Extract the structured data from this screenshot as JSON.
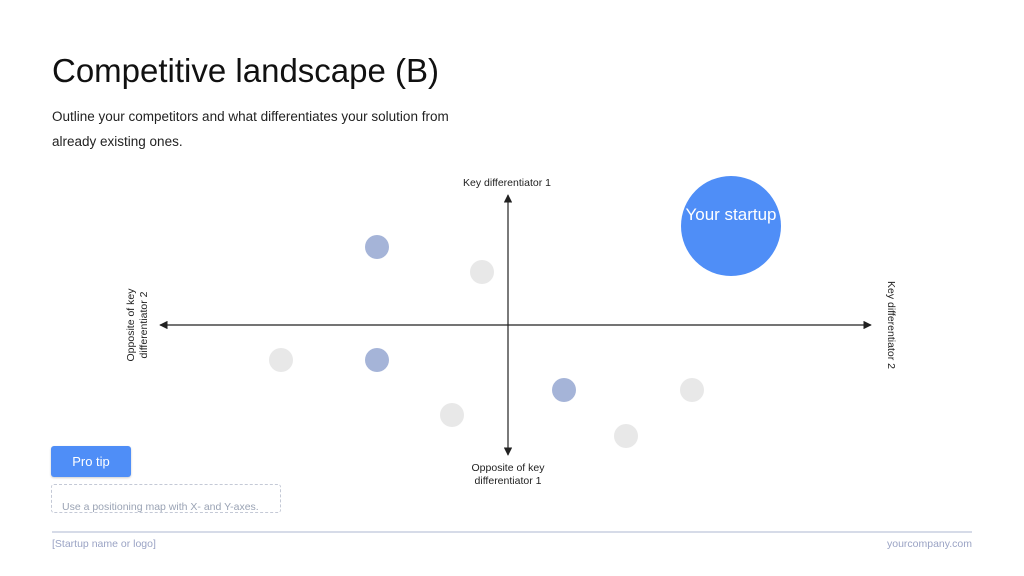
{
  "title": "Competitive landscape (B)",
  "subtitle": "Outline your competitors and what differentiates your solution from already existing ones.",
  "map": {
    "y_axis_top_label": "Key differentiator 1",
    "y_axis_bottom_label": "Opposite of key differentiator 1",
    "x_axis_left_label": "Opposite of key differentiator 2",
    "x_axis_right_label": "Key differentiator 2",
    "startup_label": "Your startup",
    "colors": {
      "startup": "#4f8ef7",
      "competitor_blue": "#a5b4d8",
      "competitor_gray": "#e8e8e8",
      "axis": "#222222"
    }
  },
  "pro_tip": {
    "button_label": "Pro tip",
    "text": "Use a positioning map with X- and Y-axes."
  },
  "footer": {
    "left": "[Startup name or logo]",
    "right": "yourcompany.com"
  }
}
